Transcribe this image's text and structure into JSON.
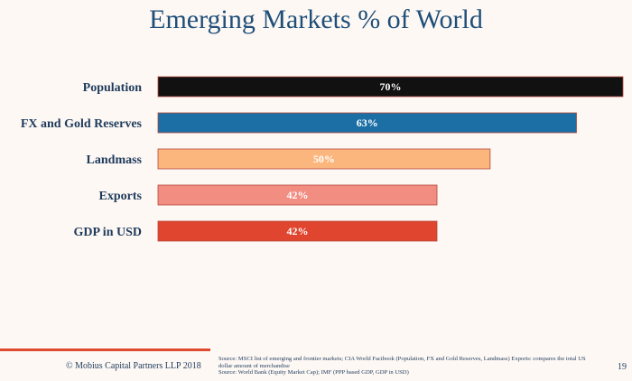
{
  "title": "Emerging Markets % of World",
  "chart_data": {
    "type": "bar",
    "orientation": "horizontal",
    "title": "Emerging Markets % of World",
    "categories": [
      "Population",
      "FX and Gold Reserves",
      "Landmass",
      "Exports",
      "GDP in USD"
    ],
    "values": [
      70,
      63,
      50,
      42,
      42
    ],
    "value_labels": [
      "70%",
      "63%",
      "50%",
      "42%",
      "42%"
    ],
    "colors": [
      "#111111",
      "#1b6fa5",
      "#fbb67e",
      "#f28d82",
      "#e0452f"
    ],
    "xlabel": "",
    "ylabel": "",
    "xlim": [
      0,
      70
    ],
    "grid": false,
    "legend": "none"
  },
  "footer": {
    "copyright": "© Mobius Capital Partners LLP 2018",
    "source_line1": "Source: MSCI list of emerging and frontier markets; CIA World Factbook (Population, FX and Gold Reserves, Landmass) Exports: compares the total US dollar amount of merchandise",
    "source_line2": "Source: World Bank (Equity Market Cap); IMF (PPP based GDP, GDP in USD)",
    "page_number": "19"
  }
}
